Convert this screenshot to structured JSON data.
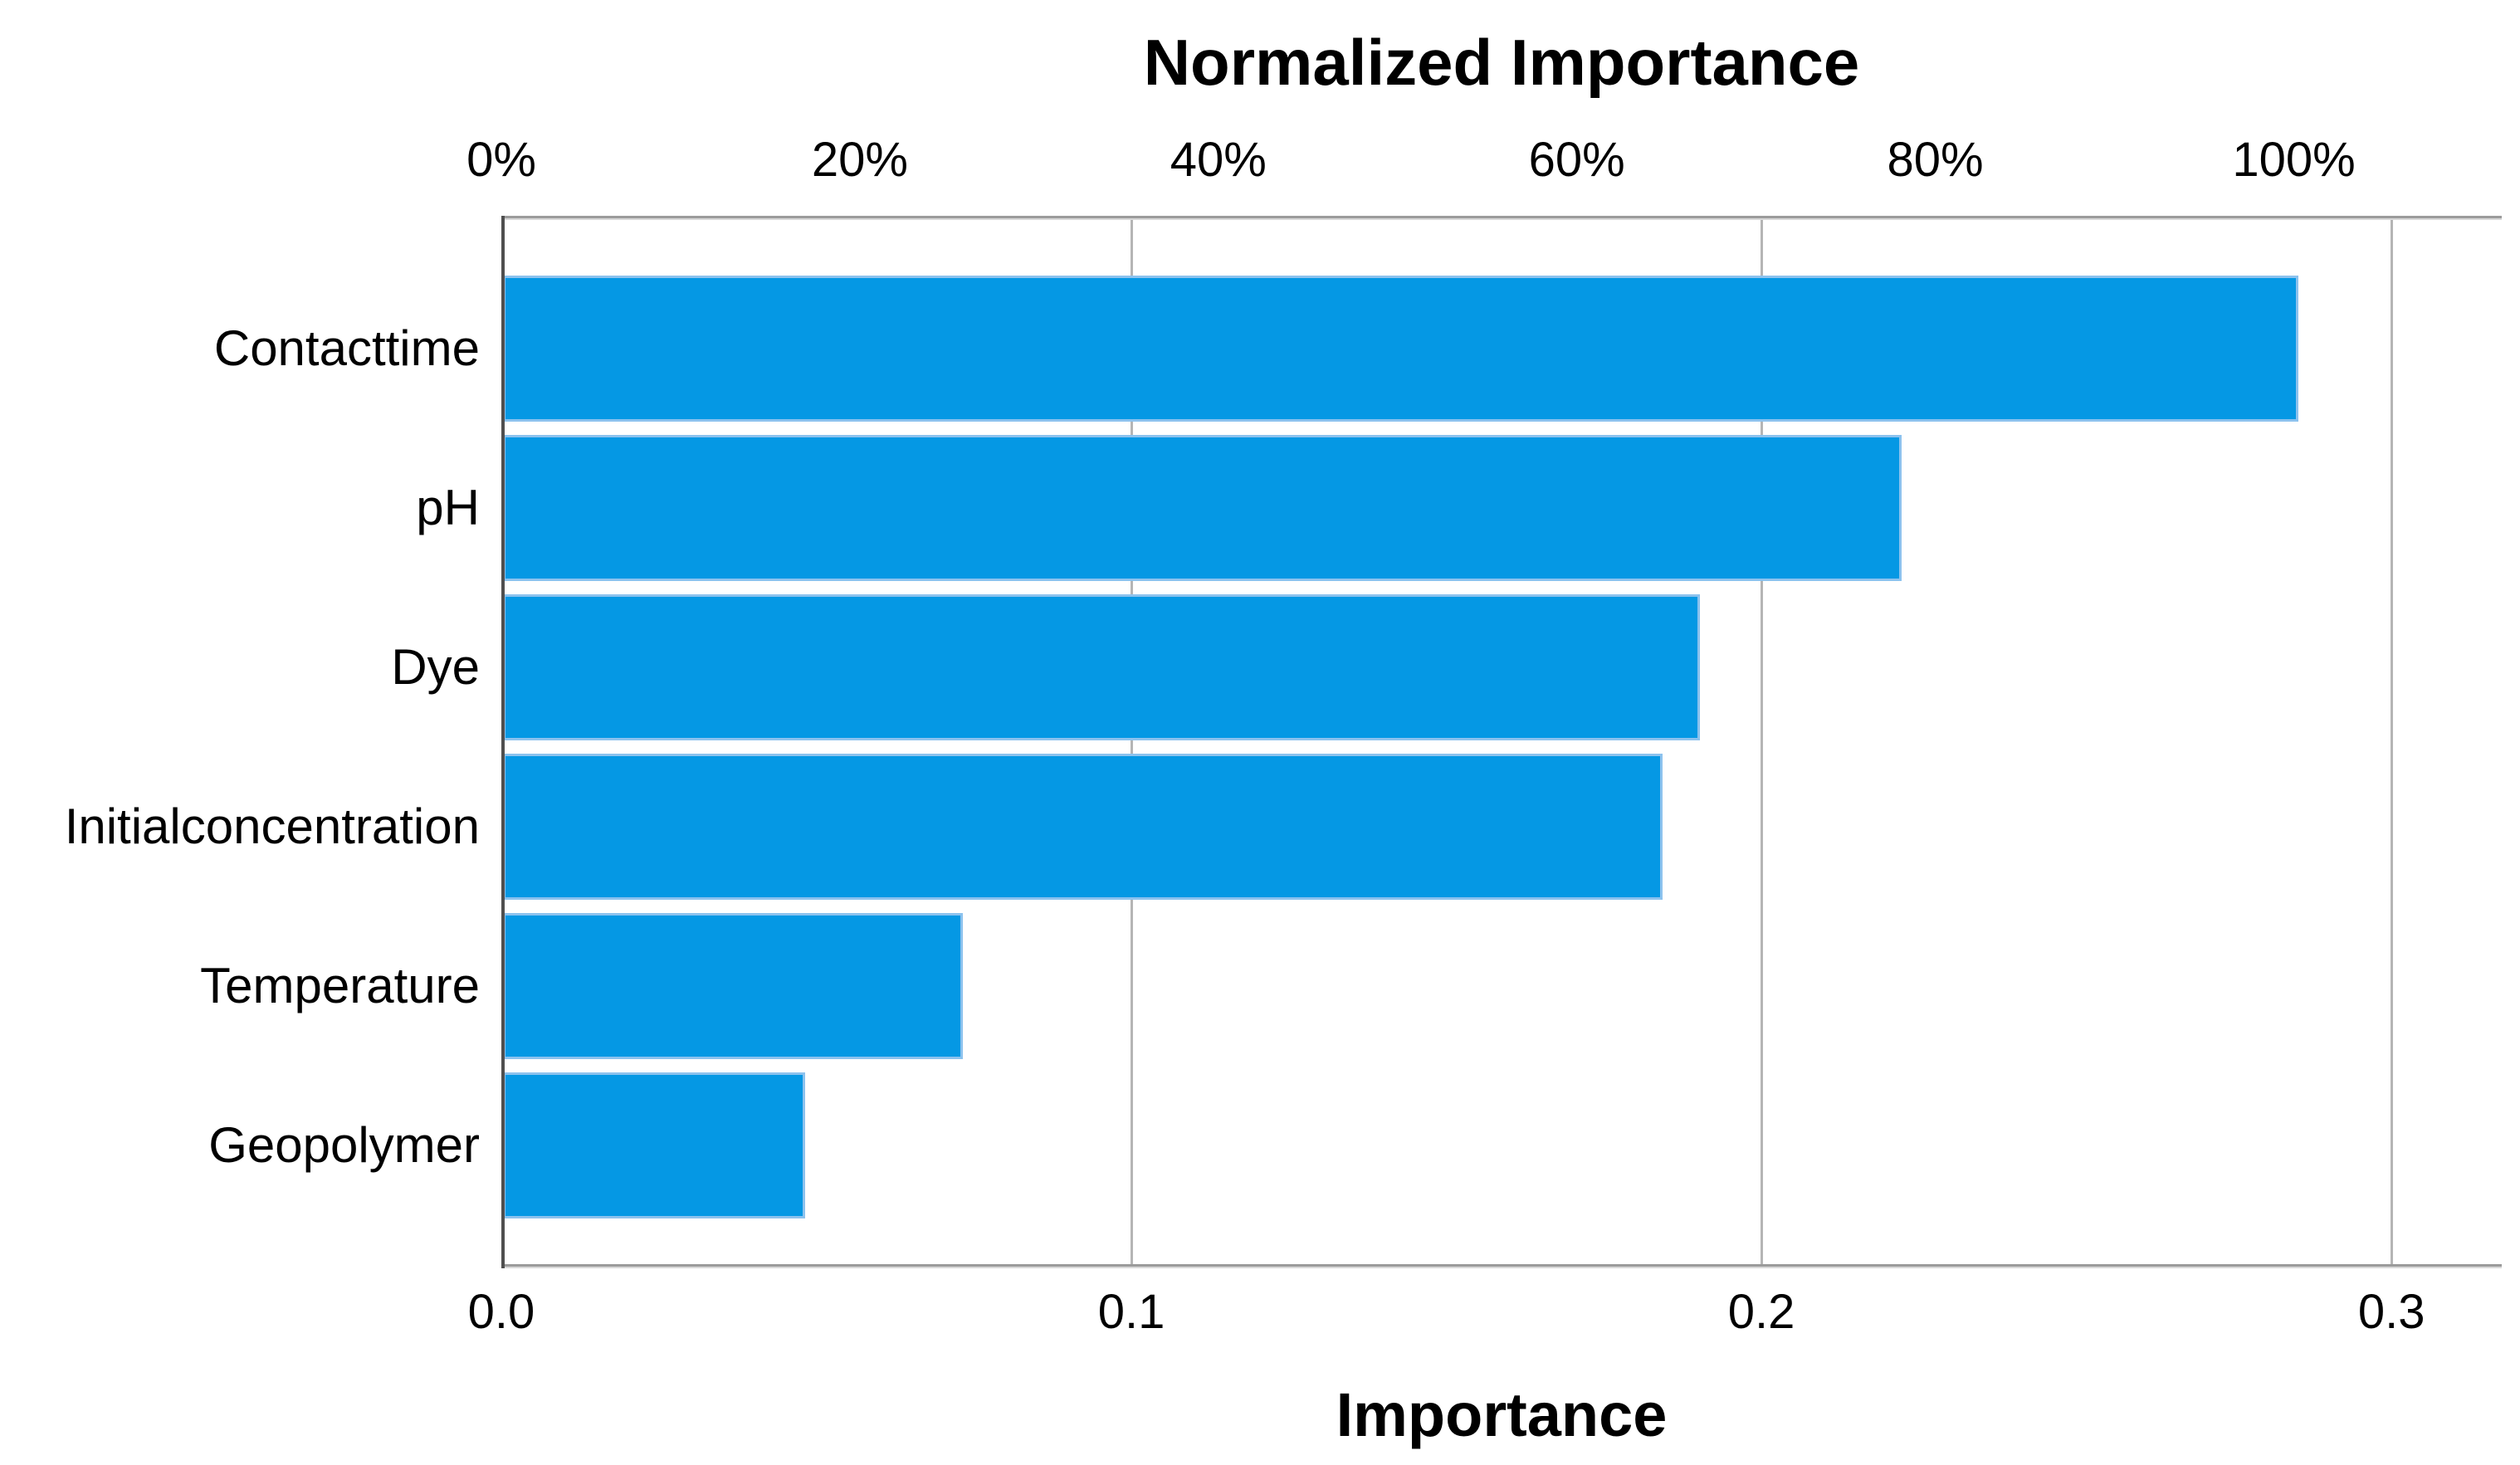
{
  "chart_data": {
    "type": "bar",
    "orientation": "horizontal",
    "title": "Normalized Importance",
    "grid": true,
    "legend": false,
    "background": "#ffffff",
    "colors": {
      "bar_fill": "#0598e4",
      "bar_edge": "#8cc2ee",
      "gridline": "#b5b5b5",
      "frame": "#9b9b9b",
      "y_axis_line": "#4f4f4f",
      "text": "#000000"
    },
    "top_axis": {
      "title": "Normalized Importance",
      "unit": "percent",
      "ticks": [
        {
          "label": "0%",
          "value": 0
        },
        {
          "label": "20%",
          "value": 20
        },
        {
          "label": "40%",
          "value": 40
        },
        {
          "label": "60%",
          "value": 60
        },
        {
          "label": "80%",
          "value": 80
        },
        {
          "label": "100%",
          "value": 100
        }
      ],
      "axis_max": 111.6
    },
    "bottom_axis": {
      "title": "Importance",
      "ticks": [
        {
          "label": "0.0",
          "value": 0.0
        },
        {
          "label": "0.1",
          "value": 0.1
        },
        {
          "label": "0.2",
          "value": 0.2
        },
        {
          "label": "0.3",
          "value": 0.3
        }
      ],
      "axis_max": 0.3175
    },
    "categories": [
      "Contacttime",
      "pH",
      "Dye",
      "Initialconcentration",
      "Temperature",
      "Geopolymer"
    ],
    "bars": [
      {
        "category": "Contacttime",
        "importance": 0.285,
        "normalized_pct": 100.0
      },
      {
        "category": "pH",
        "importance": 0.222,
        "normalized_pct": 78.0
      },
      {
        "category": "Dye",
        "importance": 0.19,
        "normalized_pct": 66.7
      },
      {
        "category": "Initialconcentration",
        "importance": 0.184,
        "normalized_pct": 64.6
      },
      {
        "category": "Temperature",
        "importance": 0.073,
        "normalized_pct": 25.6
      },
      {
        "category": "Geopolymer",
        "importance": 0.048,
        "normalized_pct": 16.8
      }
    ]
  }
}
